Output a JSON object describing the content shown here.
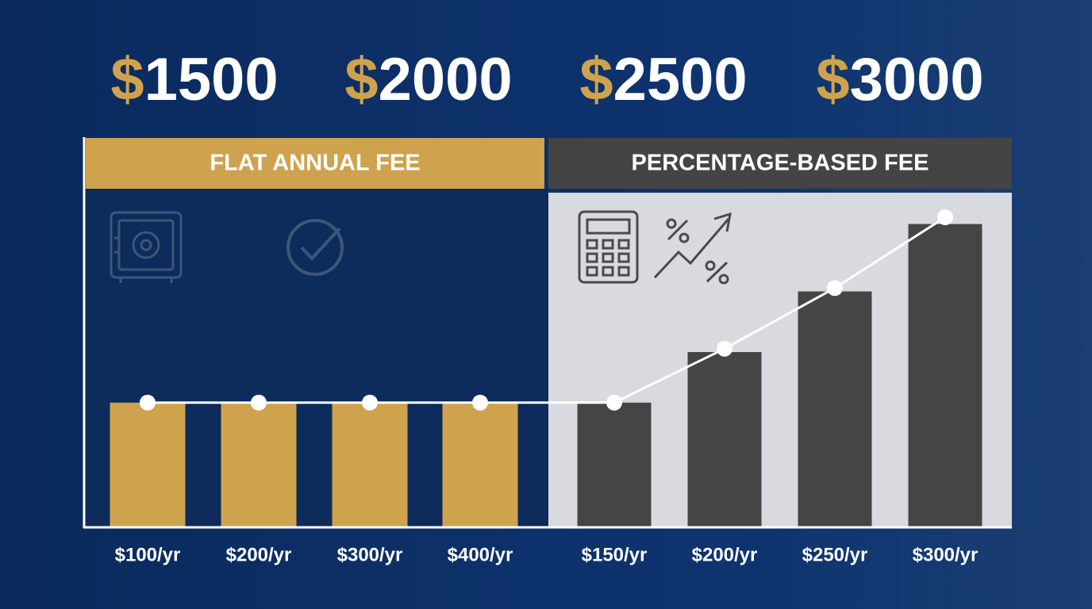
{
  "chart_data": {
    "type": "bar",
    "prices": [
      {
        "symbol": "$",
        "amount": 1500
      },
      {
        "symbol": "$",
        "amount": 2000
      },
      {
        "symbol": "$",
        "amount": 2500
      },
      {
        "symbol": "$",
        "amount": 3000
      }
    ],
    "symbol_color": "#cfa24d",
    "ylim": [
      0,
      100
    ],
    "panels": [
      {
        "title": "FLAT ANNUAL FEE",
        "header_color": "#cfa24d",
        "title_color": "#ffffff",
        "body_color": "#0d2b5b",
        "bar_color": "#cfa24d",
        "categories": [
          "$100/yr",
          "$200/yr",
          "$300/yr",
          "$400/yr"
        ],
        "values": [
          37,
          37,
          37,
          37
        ]
      },
      {
        "title": "PERCENTAGE-BASED FEE",
        "header_color": "#444444",
        "title_color": "#ffffff",
        "body_color": "#d8dadf",
        "bar_color": "#454545",
        "categories": [
          "$150/yr",
          "$200/yr",
          "$250/yr",
          "$300/yr"
        ],
        "values": [
          37,
          52,
          70,
          90
        ]
      }
    ],
    "trend_line": {
      "color": "#ffffff",
      "values": [
        37,
        37,
        37,
        37,
        37,
        53,
        71,
        92
      ]
    }
  }
}
